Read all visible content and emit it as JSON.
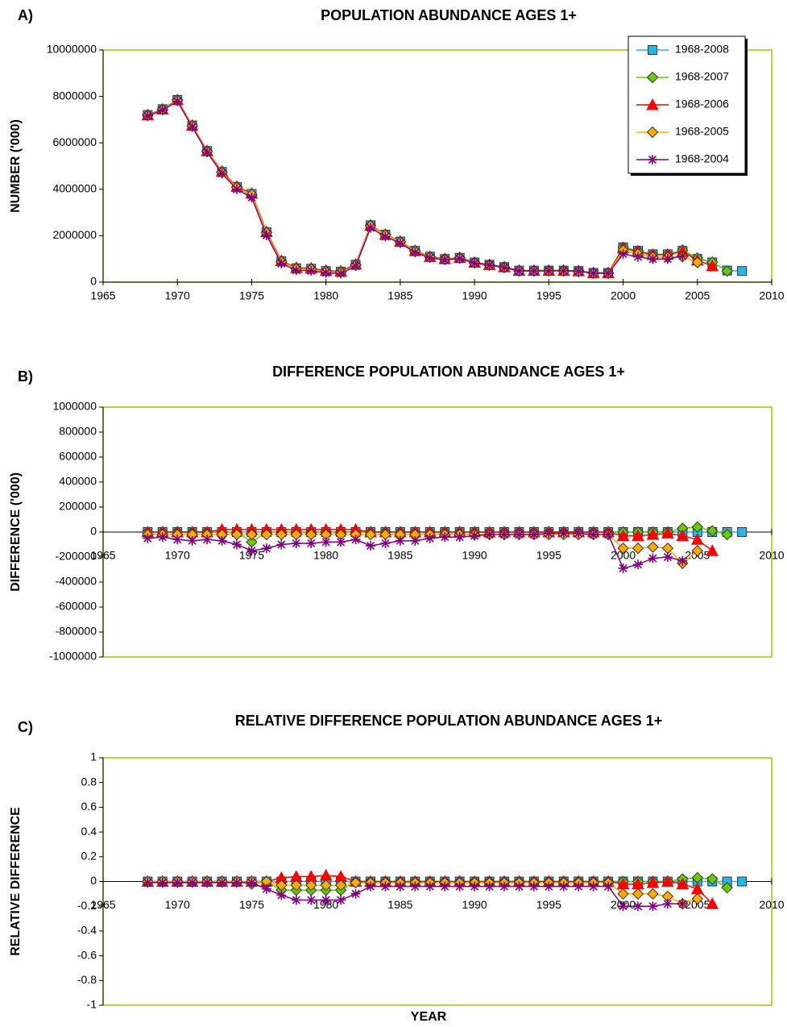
{
  "chart_data": [
    {
      "type": "line",
      "panel_label": "A)",
      "title": "POPULATION ABUNDANCE AGES 1+",
      "ylabel": "NUMBER ('000)",
      "x": [
        1968,
        1969,
        1970,
        1971,
        1972,
        1973,
        1974,
        1975,
        1976,
        1977,
        1978,
        1979,
        1980,
        1981,
        1982,
        1983,
        1984,
        1985,
        1986,
        1987,
        1988,
        1989,
        1990,
        1991,
        1992,
        1993,
        1994,
        1995,
        1996,
        1997,
        1998,
        1999,
        2000,
        2001,
        2002,
        2003,
        2004,
        2005,
        2006,
        2007,
        2008
      ],
      "xlim": [
        1965,
        2010
      ],
      "xticks": [
        1965,
        1970,
        1975,
        1980,
        1985,
        1990,
        1995,
        2000,
        2005,
        2010
      ],
      "ylim": [
        0,
        10000000
      ],
      "yticks": [
        0,
        2000000,
        4000000,
        6000000,
        8000000,
        10000000
      ],
      "grid": false,
      "legend": "top-right",
      "series": [
        {
          "name": "1968-2008",
          "color": "#29b6e6",
          "marker": "square",
          "values": [
            7200000,
            7450000,
            7850000,
            6750000,
            5650000,
            4750000,
            4100000,
            3800000,
            2150000,
            900000,
            600000,
            580000,
            480000,
            450000,
            750000,
            2450000,
            2050000,
            1750000,
            1350000,
            1100000,
            1000000,
            1050000,
            850000,
            750000,
            650000,
            500000,
            500000,
            500000,
            500000,
            480000,
            400000,
            400000,
            1500000,
            1350000,
            1200000,
            1200000,
            1350000,
            1000000,
            850000,
            500000,
            480000
          ]
        },
        {
          "name": "1968-2007",
          "color": "#66cc00",
          "marker": "diamond",
          "values": [
            7200000,
            7450000,
            7850000,
            6750000,
            5650000,
            4750000,
            4100000,
            3720000,
            2150000,
            900000,
            600000,
            580000,
            480000,
            450000,
            750000,
            2450000,
            2050000,
            1750000,
            1350000,
            1100000,
            1000000,
            1050000,
            850000,
            750000,
            650000,
            500000,
            500000,
            500000,
            500000,
            480000,
            400000,
            400000,
            1500000,
            1350000,
            1200000,
            1200000,
            1380000,
            1040000,
            860000,
            480000,
            null
          ]
        },
        {
          "name": "1968-2006",
          "color": "#ff0000",
          "marker": "triangle",
          "values": [
            7200000,
            7450000,
            7850000,
            6750000,
            5650000,
            4770000,
            4120000,
            3820000,
            2170000,
            920000,
            620000,
            600000,
            500000,
            470000,
            770000,
            2450000,
            2050000,
            1750000,
            1350000,
            1100000,
            1000000,
            1050000,
            850000,
            750000,
            650000,
            500000,
            500000,
            500000,
            500000,
            480000,
            400000,
            400000,
            1470000,
            1320000,
            1180000,
            1190000,
            1320000,
            940000,
            700000,
            null,
            null
          ]
        },
        {
          "name": "1968-2005",
          "color": "#ffaa00",
          "marker": "diamond",
          "values": [
            7180000,
            7430000,
            7830000,
            6730000,
            5630000,
            4730000,
            4080000,
            3780000,
            2130000,
            880000,
            580000,
            560000,
            460000,
            430000,
            730000,
            2430000,
            2030000,
            1730000,
            1330000,
            1080000,
            980000,
            1030000,
            830000,
            730000,
            630000,
            480000,
            480000,
            480000,
            480000,
            460000,
            380000,
            380000,
            1370000,
            1220000,
            1080000,
            1070000,
            1100000,
            850000,
            null,
            null,
            null
          ]
        },
        {
          "name": "1968-2004",
          "color": "#800080",
          "marker": "asterisk",
          "values": [
            7150000,
            7410000,
            7790000,
            6680000,
            5590000,
            4680000,
            4000000,
            3650000,
            2020000,
            800000,
            510000,
            490000,
            400000,
            370000,
            690000,
            2340000,
            1960000,
            1680000,
            1280000,
            1050000,
            960000,
            1010000,
            820000,
            730000,
            630000,
            480000,
            480000,
            490000,
            490000,
            470000,
            380000,
            380000,
            1210000,
            1090000,
            990000,
            1000000,
            1120000,
            null,
            null,
            null,
            null
          ]
        }
      ]
    },
    {
      "type": "line",
      "panel_label": "B)",
      "title": "DIFFERENCE POPULATION ABUNDANCE AGES 1+",
      "ylabel": "DIFFERENCE ('000)",
      "x": [
        1968,
        1969,
        1970,
        1971,
        1972,
        1973,
        1974,
        1975,
        1976,
        1977,
        1978,
        1979,
        1980,
        1981,
        1982,
        1983,
        1984,
        1985,
        1986,
        1987,
        1988,
        1989,
        1990,
        1991,
        1992,
        1993,
        1994,
        1995,
        1996,
        1997,
        1998,
        1999,
        2000,
        2001,
        2002,
        2003,
        2004,
        2005,
        2006,
        2007,
        2008
      ],
      "xlim": [
        1965,
        2010
      ],
      "xticks": [
        1965,
        1970,
        1975,
        1980,
        1985,
        1990,
        1995,
        2000,
        2005,
        2010
      ],
      "ylim": [
        -1000000,
        1000000
      ],
      "yticks": [
        -1000000,
        -800000,
        -600000,
        -400000,
        -200000,
        0,
        200000,
        400000,
        600000,
        800000,
        1000000
      ],
      "grid": false,
      "series": [
        {
          "color": "#29b6e6",
          "marker": "square",
          "values": [
            0,
            0,
            0,
            0,
            0,
            0,
            0,
            0,
            0,
            0,
            0,
            0,
            0,
            0,
            0,
            0,
            0,
            0,
            0,
            0,
            0,
            0,
            0,
            0,
            0,
            0,
            0,
            0,
            0,
            0,
            0,
            0,
            0,
            0,
            0,
            0,
            0,
            0,
            0,
            0,
            0
          ]
        },
        {
          "color": "#66cc00",
          "marker": "diamond",
          "values": [
            0,
            0,
            0,
            0,
            0,
            0,
            0,
            -80000,
            0,
            0,
            0,
            0,
            0,
            0,
            0,
            0,
            0,
            0,
            0,
            0,
            0,
            0,
            0,
            0,
            0,
            0,
            0,
            0,
            0,
            0,
            0,
            0,
            0,
            0,
            0,
            0,
            30000,
            40000,
            10000,
            -20000,
            null
          ]
        },
        {
          "color": "#ff0000",
          "marker": "triangle",
          "values": [
            0,
            0,
            0,
            0,
            0,
            20000,
            20000,
            20000,
            20000,
            20000,
            20000,
            20000,
            20000,
            20000,
            20000,
            0,
            0,
            0,
            0,
            0,
            0,
            0,
            0,
            0,
            0,
            0,
            0,
            0,
            0,
            0,
            0,
            0,
            -30000,
            -30000,
            -20000,
            -10000,
            -30000,
            -60000,
            -150000,
            null,
            null
          ]
        },
        {
          "color": "#ffaa00",
          "marker": "diamond",
          "values": [
            -20000,
            -20000,
            -20000,
            -20000,
            -20000,
            -20000,
            -20000,
            -20000,
            -20000,
            -20000,
            -20000,
            -20000,
            -20000,
            -20000,
            -20000,
            -20000,
            -20000,
            -20000,
            -20000,
            -20000,
            -20000,
            -20000,
            -20000,
            -20000,
            -20000,
            -20000,
            -20000,
            -20000,
            -20000,
            -20000,
            -20000,
            -20000,
            -130000,
            -130000,
            -120000,
            -130000,
            -250000,
            -150000,
            null,
            null,
            null
          ]
        },
        {
          "color": "#800080",
          "marker": "asterisk",
          "values": [
            -50000,
            -40000,
            -60000,
            -70000,
            -60000,
            -70000,
            -100000,
            -150000,
            -130000,
            -100000,
            -90000,
            -90000,
            -80000,
            -80000,
            -60000,
            -110000,
            -90000,
            -70000,
            -70000,
            -50000,
            -40000,
            -40000,
            -30000,
            -20000,
            -20000,
            -20000,
            -20000,
            -10000,
            -10000,
            -10000,
            -20000,
            -20000,
            -290000,
            -260000,
            -210000,
            -200000,
            -230000,
            null,
            null,
            null,
            null
          ]
        }
      ]
    },
    {
      "type": "line",
      "panel_label": "C)",
      "title": "RELATIVE DIFFERENCE POPULATION ABUNDANCE AGES 1+",
      "ylabel": "RELATIVE DIFFERENCE",
      "xlabel": "YEAR",
      "x": [
        1968,
        1969,
        1970,
        1971,
        1972,
        1973,
        1974,
        1975,
        1976,
        1977,
        1978,
        1979,
        1980,
        1981,
        1982,
        1983,
        1984,
        1985,
        1986,
        1987,
        1988,
        1989,
        1990,
        1991,
        1992,
        1993,
        1994,
        1995,
        1996,
        1997,
        1998,
        1999,
        2000,
        2001,
        2002,
        2003,
        2004,
        2005,
        2006,
        2007,
        2008
      ],
      "xlim": [
        1965,
        2010
      ],
      "xticks": [
        1965,
        1970,
        1975,
        1980,
        1985,
        1990,
        1995,
        2000,
        2005,
        2010
      ],
      "ylim": [
        -1,
        1
      ],
      "yticks": [
        -1,
        -0.8,
        -0.6,
        -0.4,
        -0.2,
        0,
        0.2,
        0.4,
        0.6,
        0.8,
        1
      ],
      "grid": false,
      "series": [
        {
          "color": "#29b6e6",
          "marker": "square",
          "values": [
            0,
            0,
            0,
            0,
            0,
            0,
            0,
            0,
            0,
            0,
            0,
            0,
            0,
            0,
            0,
            0,
            0,
            0,
            0,
            0,
            0,
            0,
            0,
            0,
            0,
            0,
            0,
            0,
            0,
            0,
            0,
            0,
            0,
            0,
            0,
            0,
            0,
            0,
            0,
            0,
            0
          ]
        },
        {
          "color": "#66cc00",
          "marker": "diamond",
          "values": [
            0,
            0,
            0,
            0,
            0,
            0,
            0,
            -0.02,
            0,
            -0.07,
            -0.07,
            -0.07,
            -0.07,
            -0.07,
            0,
            0,
            0,
            0,
            0,
            0,
            0,
            0,
            0,
            0,
            0,
            0,
            0,
            0,
            0,
            0,
            0,
            0,
            0,
            0,
            0,
            0,
            0.02,
            0.03,
            0.02,
            -0.05,
            null
          ]
        },
        {
          "color": "#ff0000",
          "marker": "triangle",
          "values": [
            0,
            0,
            0,
            0,
            0,
            0,
            0,
            0,
            0,
            0.03,
            0.04,
            0.04,
            0.05,
            0.04,
            0,
            0,
            0,
            0,
            0,
            0,
            0,
            0,
            0,
            0,
            0,
            0,
            0,
            0,
            0,
            0,
            0,
            0,
            -0.02,
            -0.02,
            -0.01,
            0,
            -0.02,
            -0.06,
            -0.18,
            null,
            null
          ]
        },
        {
          "color": "#ffaa00",
          "marker": "diamond",
          "values": [
            0,
            0,
            0,
            0,
            0,
            0,
            0,
            0,
            0,
            -0.03,
            -0.03,
            -0.03,
            -0.03,
            -0.03,
            -0.01,
            -0.01,
            -0.01,
            -0.01,
            -0.01,
            -0.01,
            -0.01,
            -0.01,
            -0.01,
            -0.01,
            -0.01,
            -0.01,
            -0.01,
            -0.01,
            -0.01,
            -0.01,
            -0.01,
            -0.01,
            -0.1,
            -0.1,
            -0.1,
            -0.12,
            -0.18,
            -0.14,
            null,
            null,
            null
          ]
        },
        {
          "color": "#800080",
          "marker": "asterisk",
          "values": [
            -0.01,
            -0.01,
            -0.01,
            -0.01,
            -0.01,
            -0.01,
            -0.01,
            -0.01,
            -0.06,
            -0.11,
            -0.15,
            -0.15,
            -0.15,
            -0.15,
            -0.1,
            -0.04,
            -0.04,
            -0.04,
            -0.04,
            -0.04,
            -0.04,
            -0.04,
            -0.04,
            -0.04,
            -0.04,
            -0.04,
            -0.04,
            -0.04,
            -0.04,
            -0.04,
            -0.04,
            -0.04,
            -0.2,
            -0.2,
            -0.2,
            -0.18,
            -0.18,
            null,
            null,
            null,
            null
          ]
        }
      ]
    }
  ]
}
